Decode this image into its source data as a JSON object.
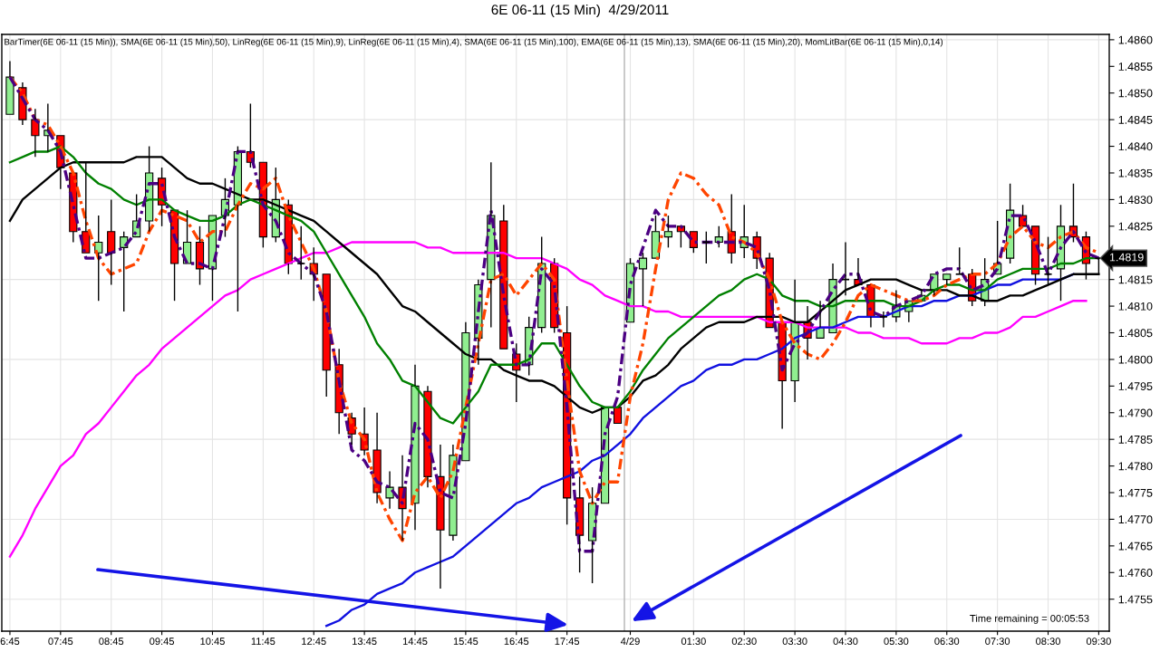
{
  "chart_data": {
    "type": "candlestick",
    "title": "6E 06-11 (15 Min)  4/29/2011",
    "subtitle": "BarTimer(6E 06-11 (15 Min)), SMA(6E 06-11 (15 Min),50), LinReg(6E 06-11 (15 Min),9), LinReg(6E 06-11 (15 Min),4), SMA(6E 06-11 (15 Min),100), EMA(6E 06-11 (15 Min),13), SMA(6E 06-11 (15 Min),20), MomLitBar(6E 06-11 (15 Min),0,14)",
    "categories": [
      "6:45",
      null,
      null,
      null,
      "07:45",
      null,
      null,
      null,
      "08:45",
      null,
      null,
      null,
      "09:45",
      null,
      null,
      null,
      "10:45",
      null,
      null,
      null,
      "11:45",
      null,
      null,
      null,
      "12:45",
      null,
      null,
      null,
      "13:45",
      null,
      null,
      null,
      "14:45",
      null,
      null,
      null,
      "15:45",
      null,
      null,
      null,
      "16:45",
      null,
      null,
      null,
      "17:45",
      null,
      null,
      null,
      null,
      "4/29",
      null,
      null,
      null,
      null,
      "01:30",
      null,
      null,
      null,
      "02:30",
      null,
      null,
      null,
      "03:30",
      null,
      null,
      null,
      "04:30",
      null,
      null,
      null,
      "05:30",
      null,
      null,
      null,
      "06:30",
      null,
      null,
      null,
      "07:30",
      null,
      null,
      null,
      "08:30",
      null,
      null,
      null,
      "09:30"
    ],
    "ohlc": [
      [
        1.4846,
        1.4856,
        1.4846,
        1.4853
      ],
      [
        1.4851,
        1.4852,
        1.4844,
        1.4845
      ],
      [
        1.4845,
        1.4847,
        1.4838,
        1.4842
      ],
      [
        1.4842,
        1.4848,
        1.4839,
        1.4843
      ],
      [
        1.4842,
        1.4842,
        1.4832,
        1.4836
      ],
      [
        1.4835,
        1.4835,
        1.4822,
        1.4824
      ],
      [
        1.4824,
        1.4837,
        1.482,
        1.482
      ],
      [
        1.482,
        1.4827,
        1.4811,
        1.4822
      ],
      [
        1.4824,
        1.483,
        1.4814,
        1.482
      ],
      [
        1.4821,
        1.4824,
        1.4809,
        1.4823
      ],
      [
        1.4823,
        1.4831,
        1.4823,
        1.4826
      ],
      [
        1.4826,
        1.484,
        1.4824,
        1.4835
      ],
      [
        1.4834,
        1.4836,
        1.4825,
        1.4829
      ],
      [
        1.4828,
        1.4828,
        1.4811,
        1.4818
      ],
      [
        1.4818,
        1.4828,
        1.4818,
        1.4822
      ],
      [
        1.4822,
        1.4825,
        1.4814,
        1.4817
      ],
      [
        1.4817,
        1.4827,
        1.4811,
        1.4827
      ],
      [
        1.4827,
        1.4834,
        1.4823,
        1.483
      ],
      [
        1.4829,
        1.484,
        1.4809,
        1.4839
      ],
      [
        1.4839,
        1.4848,
        1.4836,
        1.4837
      ],
      [
        1.4837,
        1.4837,
        1.4821,
        1.4823
      ],
      [
        1.4823,
        1.4836,
        1.4822,
        1.483
      ],
      [
        1.4829,
        1.483,
        1.4816,
        1.4818
      ],
      [
        1.4818,
        1.4825,
        1.4815,
        1.4818
      ],
      [
        1.4818,
        1.4821,
        1.4811,
        1.4816
      ],
      [
        1.4816,
        1.4816,
        1.4793,
        1.4798
      ],
      [
        1.4799,
        1.4802,
        1.4786,
        1.479
      ],
      [
        1.4789,
        1.479,
        1.4784,
        1.4786
      ],
      [
        1.4786,
        1.4791,
        1.4782,
        1.4783
      ],
      [
        1.4783,
        1.479,
        1.4773,
        1.4775
      ],
      [
        1.4774,
        1.4779,
        1.4772,
        1.4776
      ],
      [
        1.4776,
        1.4782,
        1.4766,
        1.4772
      ],
      [
        1.4773,
        1.4799,
        1.4768,
        1.4795
      ],
      [
        1.4794,
        1.4795,
        1.4776,
        1.4778
      ],
      [
        1.4778,
        1.4784,
        1.4757,
        1.4768
      ],
      [
        1.4767,
        1.4784,
        1.4766,
        1.4782
      ],
      [
        1.4781,
        1.4807,
        1.4781,
        1.4805
      ],
      [
        1.4804,
        1.4815,
        1.4799,
        1.4814
      ],
      [
        1.4815,
        1.4837,
        1.4806,
        1.4827
      ],
      [
        1.4826,
        1.4829,
        1.4802,
        1.4802
      ],
      [
        1.4801,
        1.4803,
        1.4792,
        1.4798
      ],
      [
        1.4799,
        1.4808,
        1.4797,
        1.4806
      ],
      [
        1.4806,
        1.4823,
        1.4805,
        1.4818
      ],
      [
        1.4818,
        1.4819,
        1.4805,
        1.4806
      ],
      [
        1.4805,
        1.481,
        1.4769,
        1.4774
      ],
      [
        1.4774,
        1.4778,
        1.476,
        1.4767
      ],
      [
        1.4766,
        1.4776,
        1.4758,
        1.4773
      ],
      [
        1.4773,
        1.4791,
        1.4773,
        1.4791
      ],
      [
        1.4791,
        1.4791,
        1.4788,
        1.4788
      ],
      [
        1.4807,
        1.4819,
        1.4807,
        1.4818
      ],
      [
        1.4817,
        1.482,
        1.481,
        1.4819
      ],
      [
        1.4819,
        1.4827,
        1.4819,
        1.4824
      ],
      [
        1.4823,
        1.4827,
        1.4821,
        1.4824
      ],
      [
        1.4825,
        1.4825,
        1.4821,
        1.4824
      ],
      [
        1.4824,
        1.4824,
        1.482,
        1.4821
      ],
      [
        1.4822,
        1.4824,
        1.4818,
        1.4822
      ],
      [
        1.4822,
        1.4825,
        1.4821,
        1.4823
      ],
      [
        1.4824,
        1.4831,
        1.4818,
        1.482
      ],
      [
        1.4821,
        1.4829,
        1.4819,
        1.4823
      ],
      [
        1.4823,
        1.4824,
        1.4817,
        1.4819
      ],
      [
        1.4819,
        1.482,
        1.4806,
        1.4806
      ],
      [
        1.4807,
        1.4807,
        1.4787,
        1.4796
      ],
      [
        1.4796,
        1.4815,
        1.4792,
        1.4807
      ],
      [
        1.4807,
        1.481,
        1.48,
        1.4804
      ],
      [
        1.4804,
        1.4811,
        1.4804,
        1.4806
      ],
      [
        1.4805,
        1.4818,
        1.4805,
        1.4815
      ],
      [
        1.4815,
        1.4822,
        1.4812,
        1.4815
      ],
      [
        1.4815,
        1.4819,
        1.4814,
        1.4814
      ],
      [
        1.4814,
        1.4814,
        1.4806,
        1.4808
      ],
      [
        1.4808,
        1.4809,
        1.4806,
        1.4808
      ],
      [
        1.4808,
        1.4813,
        1.4807,
        1.481
      ],
      [
        1.4809,
        1.4811,
        1.4807,
        1.4811
      ],
      [
        1.4811,
        1.4813,
        1.4811,
        1.4812
      ],
      [
        1.4813,
        1.4816,
        1.4812,
        1.4816
      ],
      [
        1.4815,
        1.4816,
        1.4814,
        1.4816
      ],
      [
        1.4816,
        1.4821,
        1.4816,
        1.4816
      ],
      [
        1.4816,
        1.4817,
        1.481,
        1.4811
      ],
      [
        1.4811,
        1.4819,
        1.481,
        1.4815
      ],
      [
        1.4816,
        1.4826,
        1.4816,
        1.4818
      ],
      [
        1.4819,
        1.4833,
        1.4818,
        1.4828
      ],
      [
        1.4827,
        1.4829,
        1.4825,
        1.4825
      ],
      [
        1.4825,
        1.4825,
        1.4814,
        1.4816
      ],
      [
        1.4816,
        1.4823,
        1.4814,
        1.4816
      ],
      [
        1.4817,
        1.4829,
        1.4811,
        1.4825
      ],
      [
        1.4825,
        1.4833,
        1.4822,
        1.4823
      ],
      [
        1.4823,
        1.4824,
        1.4815,
        1.4818
      ],
      [
        1.4819,
        1.4819,
        1.4816,
        1.4819
      ]
    ],
    "colors": [
      "#90ee90",
      "#ff0000",
      "#ff0000",
      "#90ee90",
      "#ff0000",
      "#ff0000",
      "#ff0000",
      "#90ee90",
      "#ff0000",
      "#90ee90",
      "#90ee90",
      "#90ee90",
      "#ff0000",
      "#ff0000",
      "#90ee90",
      "#ff0000",
      "#90ee90",
      "#90ee90",
      "#90ee90",
      "#ff0000",
      "#ff0000",
      "#90ee90",
      "#ff0000",
      "#000000",
      "#ff0000",
      "#ff0000",
      "#ff0000",
      "#ff0000",
      "#ff0000",
      "#ff0000",
      "#90ee90",
      "#ff0000",
      "#90ee90",
      "#ff0000",
      "#ff0000",
      "#90ee90",
      "#90ee90",
      "#90ee90",
      "#90ee90",
      "#ff0000",
      "#ff0000",
      "#90ee90",
      "#90ee90",
      "#ff0000",
      "#ff0000",
      "#ff0000",
      "#90ee90",
      "#90ee90",
      "#ff0000",
      "#90ee90",
      "#90ee90",
      "#90ee90",
      "#90ee90",
      "#ff0000",
      "#ff0000",
      "#000000",
      "#90ee90",
      "#ff0000",
      "#90ee90",
      "#ff0000",
      "#ff0000",
      "#ff0000",
      "#90ee90",
      "#ff0000",
      "#90ee90",
      "#90ee90",
      "#000000",
      "#ff0000",
      "#ff0000",
      "#000000",
      "#90ee90",
      "#90ee90",
      "#90ee90",
      "#90ee90",
      "#90ee90",
      "#000000",
      "#ff0000",
      "#90ee90",
      "#90ee90",
      "#90ee90",
      "#ff0000",
      "#ff0000",
      "#000000",
      "#90ee90",
      "#ff0000",
      "#ff0000",
      "#000000"
    ],
    "series": [
      {
        "type": "line",
        "color": "#ff00ff",
        "values": [
          1.4763,
          1.4767,
          1.4772,
          1.4776,
          1.478,
          1.4782,
          1.4786,
          1.4788,
          1.4791,
          1.4794,
          1.4797,
          1.4799,
          1.4802,
          1.4804,
          1.4806,
          1.4808,
          1.481,
          1.4812,
          1.4813,
          1.4815,
          1.4816,
          1.4817,
          1.4818,
          1.4819,
          1.482,
          1.482,
          1.4821,
          1.4822,
          1.4822,
          1.4822,
          1.4822,
          1.4822,
          1.4822,
          1.4821,
          1.4821,
          1.482,
          1.482,
          1.482,
          1.482,
          1.482,
          1.4819,
          1.4819,
          1.4819,
          1.4818,
          1.4817,
          1.4815,
          1.4814,
          1.4812,
          1.4811,
          1.481,
          1.481,
          1.4809,
          1.4809,
          1.4808,
          1.4808,
          1.4808,
          1.4808,
          1.4808,
          1.4808,
          1.4808,
          1.4807,
          1.4807,
          1.4807,
          1.4806,
          1.4806,
          1.4806,
          1.4806,
          1.4805,
          1.4805,
          1.4804,
          1.4804,
          1.4804,
          1.4803,
          1.4803,
          1.4803,
          1.4804,
          1.4804,
          1.4805,
          1.4805,
          1.4806,
          1.4808,
          1.4808,
          1.4809,
          1.481,
          1.4811,
          1.4811,
          null
        ]
      },
      {
        "type": "line",
        "color": "#1010e0",
        "values": [
          null,
          null,
          null,
          null,
          null,
          null,
          null,
          null,
          null,
          null,
          null,
          null,
          null,
          null,
          null,
          null,
          null,
          null,
          null,
          null,
          null,
          null,
          null,
          null,
          null,
          1.475,
          1.4751,
          1.4753,
          1.4754,
          1.4756,
          1.4757,
          1.4758,
          1.476,
          1.4761,
          1.4762,
          1.4763,
          1.4765,
          1.4767,
          1.4769,
          1.4771,
          1.4773,
          1.4774,
          1.4776,
          1.4777,
          1.4778,
          1.4779,
          1.4781,
          1.4782,
          1.4784,
          1.4786,
          1.4789,
          1.4791,
          1.4793,
          1.4795,
          1.4796,
          1.4798,
          1.4799,
          1.4799,
          1.48,
          1.48,
          1.4801,
          1.4802,
          1.4804,
          1.4805,
          1.4806,
          1.4806,
          1.4807,
          1.4808,
          1.4808,
          1.4808,
          1.4809,
          1.481,
          1.481,
          1.4811,
          1.4811,
          1.4812,
          1.4812,
          1.4813,
          1.4814,
          1.4814,
          1.4815,
          1.4815,
          1.4815,
          1.4815,
          1.4816,
          null,
          null
        ]
      },
      {
        "type": "line",
        "color": "#000000",
        "values": [
          1.4826,
          1.483,
          1.4832,
          1.4834,
          1.4836,
          1.4837,
          1.4837,
          1.4837,
          1.4837,
          1.4837,
          1.4838,
          1.4838,
          1.4838,
          1.4836,
          1.4834,
          1.4833,
          1.4833,
          1.4832,
          1.4831,
          1.483,
          1.483,
          1.4829,
          1.4828,
          1.4827,
          1.4826,
          1.4824,
          1.4822,
          1.482,
          1.4818,
          1.4816,
          1.4813,
          1.481,
          1.4809,
          1.4807,
          1.4805,
          1.4803,
          1.4801,
          1.48,
          1.48,
          1.4798,
          1.4797,
          1.4796,
          1.4796,
          1.4795,
          1.4793,
          1.4791,
          1.479,
          1.4791,
          1.4791,
          1.4793,
          1.4796,
          1.4797,
          1.4799,
          1.4802,
          1.4804,
          1.4806,
          1.4807,
          1.4807,
          1.4807,
          1.4808,
          1.4808,
          1.4808,
          1.4807,
          1.4807,
          1.4809,
          1.4811,
          1.4813,
          1.4814,
          1.4815,
          1.4815,
          1.4815,
          1.4814,
          1.4813,
          1.4813,
          1.4813,
          1.4812,
          1.4812,
          1.4811,
          1.4811,
          1.4812,
          1.4812,
          1.4813,
          1.4814,
          1.4815,
          1.4816,
          1.4816,
          1.4816
        ]
      },
      {
        "type": "line",
        "color": "#008000",
        "values": [
          1.4837,
          1.4838,
          1.4839,
          1.4839,
          1.484,
          1.4838,
          1.4835,
          1.4833,
          1.4832,
          1.483,
          1.4829,
          1.483,
          1.483,
          1.4828,
          1.4827,
          1.4826,
          1.4826,
          1.4827,
          1.4829,
          1.483,
          1.4829,
          1.4828,
          1.4827,
          1.4826,
          1.4824,
          1.482,
          1.4816,
          1.4812,
          1.4808,
          1.4803,
          1.48,
          1.4796,
          1.4795,
          1.4792,
          1.4789,
          1.4788,
          1.4791,
          1.4794,
          1.4799,
          1.4799,
          1.4799,
          1.48,
          1.4803,
          1.4803,
          1.4799,
          1.4795,
          1.4792,
          1.4791,
          1.4791,
          1.4794,
          1.4798,
          1.4801,
          1.4804,
          1.4806,
          1.4808,
          1.481,
          1.4812,
          1.4813,
          1.4815,
          1.4816,
          1.4815,
          1.4812,
          1.4811,
          1.4811,
          1.481,
          1.481,
          1.4811,
          1.4811,
          1.4811,
          1.4811,
          1.481,
          1.481,
          1.4811,
          1.4813,
          1.4814,
          1.4814,
          1.4813,
          1.4813,
          1.4815,
          1.4816,
          1.4817,
          1.4817,
          1.4817,
          1.4818,
          1.4818,
          1.4819,
          1.4819
        ]
      },
      {
        "type": "line",
        "color": "#ff4500",
        "line_style": "dashdot",
        "values": [
          1.4853,
          1.485,
          1.4845,
          1.4844,
          1.484,
          1.4835,
          1.4826,
          1.4819,
          1.4816,
          1.4817,
          1.4818,
          1.4824,
          1.4828,
          1.4827,
          1.4826,
          1.4822,
          1.4824,
          1.4824,
          1.4829,
          1.4833,
          1.4832,
          1.4834,
          1.4827,
          1.4822,
          1.4817,
          1.4809,
          1.4796,
          1.4788,
          1.4785,
          1.4775,
          1.477,
          1.4766,
          1.4775,
          1.4778,
          1.4774,
          1.4779,
          1.4791,
          1.4803,
          1.4815,
          1.4816,
          1.4812,
          1.4815,
          1.4818,
          1.4815,
          1.4796,
          1.4779,
          1.4773,
          1.4777,
          1.4777,
          1.4793,
          1.4803,
          1.4817,
          1.483,
          1.4835,
          1.4834,
          1.4831,
          1.4829,
          1.4823,
          1.4822,
          1.482,
          1.4815,
          1.4807,
          1.4803,
          1.4801,
          1.48,
          1.4803,
          1.4807,
          1.4812,
          1.4814,
          1.4813,
          1.4812,
          1.4811,
          1.4811,
          1.4812,
          1.4814,
          1.4815,
          1.4816,
          1.4816,
          1.4818,
          1.4823,
          1.4825,
          1.4822,
          1.4821,
          1.4823,
          1.4824,
          1.4821,
          1.482
        ]
      },
      {
        "type": "line",
        "color": "#4b0082",
        "line_style": "dashdot",
        "values": [
          1.4853,
          1.4849,
          1.4845,
          1.4843,
          1.4839,
          1.4829,
          1.4819,
          1.4819,
          1.482,
          1.4821,
          1.4824,
          1.4833,
          1.4833,
          1.4823,
          1.4818,
          1.4818,
          1.4817,
          1.4827,
          1.4839,
          1.4839,
          1.4829,
          1.4826,
          1.482,
          1.4818,
          1.4816,
          1.4809,
          1.4796,
          1.4783,
          1.4781,
          1.4777,
          1.4776,
          1.4773,
          1.4788,
          1.4785,
          1.4775,
          1.4774,
          1.4788,
          1.4809,
          1.4828,
          1.4812,
          1.4799,
          1.4799,
          1.4817,
          1.4814,
          1.4791,
          1.4764,
          1.4764,
          1.4786,
          1.4793,
          1.4814,
          1.4821,
          1.4828,
          1.4825,
          1.4825,
          1.4822,
          1.4822,
          1.4822,
          1.4822,
          1.4822,
          1.4821,
          1.4813,
          1.4798,
          1.4803,
          1.4805,
          1.4809,
          1.4813,
          1.4816,
          1.4816,
          1.4809,
          1.4808,
          1.481,
          1.4811,
          1.4812,
          1.4816,
          1.4817,
          1.4817,
          1.4813,
          1.4814,
          1.4817,
          1.4827,
          1.4827,
          1.4822,
          1.4816,
          1.4821,
          1.4824,
          1.482,
          1.4819
        ]
      }
    ],
    "ylim": [
      1.4749,
      1.4861
    ],
    "yticks": [
      1.4755,
      {
        "value": 1.476,
        "label": "1.4760"
      },
      1.4765,
      {
        "value": 1.477,
        "label": "1.4770"
      },
      1.4775,
      {
        "value": 1.478,
        "label": "1.4780"
      },
      1.4785,
      {
        "value": 1.479,
        "label": "1.4790"
      },
      1.4795,
      {
        "value": 1.48,
        "label": "1.4800"
      },
      1.4805,
      {
        "value": 1.481,
        "label": "1.4810"
      },
      1.4815,
      {
        "value": 1.482,
        "label": null
      },
      1.4825,
      {
        "value": 1.483,
        "label": "1.4830"
      },
      1.4835,
      {
        "value": 1.484,
        "label": "1.4840"
      },
      1.4845,
      {
        "value": 1.485,
        "label": "1.4850"
      },
      1.4855,
      {
        "value": 1.486,
        "label": "1.4860"
      }
    ],
    "grid": true,
    "annotations": [
      "1.4819",
      "Time remaining = 00:05:53"
    ]
  }
}
